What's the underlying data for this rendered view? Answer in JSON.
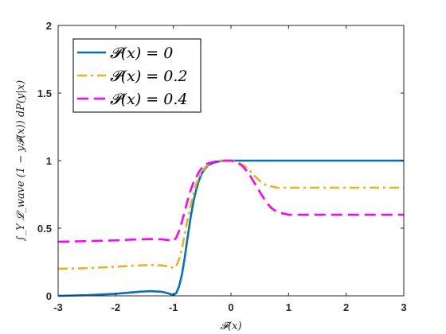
{
  "chart_data": {
    "type": "line",
    "title": "",
    "xlabel": "𝓕(x)",
    "ylabel": "∫_Y 𝓛_wave (1 − y𝓕(x)) dP(y|x)",
    "xlim": [
      -3,
      3
    ],
    "ylim": [
      0,
      2
    ],
    "x_ticks": [
      -3,
      -2,
      -1,
      0,
      1,
      2,
      3
    ],
    "y_ticks": [
      0,
      0.5,
      1,
      1.5,
      2
    ],
    "x_tick_labels": [
      "-3",
      "-2",
      "-1",
      "0",
      "1",
      "2",
      "3"
    ],
    "y_tick_labels": [
      "0",
      "0.5",
      "1",
      "1.5",
      "2"
    ],
    "grid": false,
    "legend_position": "top-left",
    "series": [
      {
        "name": "𝓟(x) = 0",
        "color": "#0072BD",
        "style": "solid",
        "x": [
          -3,
          -2.5,
          -2,
          -1.6,
          -1.4,
          -1.2,
          -1.1,
          -1.0,
          -0.95,
          -0.9,
          -0.85,
          -0.8,
          -0.75,
          -0.7,
          -0.65,
          -0.6,
          -0.55,
          -0.5,
          -0.45,
          -0.4,
          -0.3,
          -0.2,
          -0.1,
          0.0,
          0.1,
          0.2,
          0.3,
          0.5,
          1,
          1.5,
          2,
          2.5,
          3
        ],
        "y": [
          0.0,
          0.005,
          0.015,
          0.03,
          0.035,
          0.03,
          0.02,
          0.005,
          0.02,
          0.07,
          0.16,
          0.29,
          0.44,
          0.58,
          0.7,
          0.79,
          0.86,
          0.91,
          0.94,
          0.965,
          0.985,
          0.995,
          1.0,
          1.0,
          1.0,
          1.0,
          1.0,
          1.0,
          1.0,
          1.0,
          1.0,
          1.0,
          1.0
        ]
      },
      {
        "name": "𝓟(x) = 0.2",
        "color": "#EDB120",
        "style": "dashdot",
        "x": [
          -3,
          -2.5,
          -2,
          -1.6,
          -1.4,
          -1.2,
          -1.05,
          -1.0,
          -0.95,
          -0.9,
          -0.85,
          -0.8,
          -0.75,
          -0.7,
          -0.65,
          -0.6,
          -0.55,
          -0.5,
          -0.45,
          -0.4,
          -0.3,
          -0.2,
          -0.1,
          0.0,
          0.1,
          0.2,
          0.3,
          0.4,
          0.5,
          0.6,
          0.7,
          0.8,
          1,
          1.5,
          2,
          2.5,
          3
        ],
        "y": [
          0.2,
          0.205,
          0.215,
          0.225,
          0.228,
          0.225,
          0.215,
          0.205,
          0.22,
          0.27,
          0.35,
          0.46,
          0.57,
          0.67,
          0.76,
          0.83,
          0.88,
          0.92,
          0.95,
          0.97,
          0.99,
          1.0,
          1.0,
          1.0,
          0.99,
          0.97,
          0.94,
          0.89,
          0.85,
          0.82,
          0.81,
          0.8,
          0.8,
          0.8,
          0.8,
          0.8,
          0.8
        ]
      },
      {
        "name": "𝓟(x) = 0.4",
        "color": "#FF00FF",
        "style": "dashed",
        "x": [
          -3,
          -2.5,
          -2,
          -1.6,
          -1.4,
          -1.2,
          -1.05,
          -1.0,
          -0.95,
          -0.9,
          -0.85,
          -0.8,
          -0.75,
          -0.7,
          -0.65,
          -0.6,
          -0.55,
          -0.5,
          -0.45,
          -0.4,
          -0.3,
          -0.2,
          -0.1,
          0.0,
          0.1,
          0.2,
          0.3,
          0.4,
          0.5,
          0.6,
          0.7,
          0.8,
          0.9,
          1,
          1.5,
          2,
          2.5,
          3
        ],
        "y": [
          0.4,
          0.405,
          0.41,
          0.418,
          0.42,
          0.418,
          0.41,
          0.405,
          0.43,
          0.48,
          0.55,
          0.63,
          0.71,
          0.78,
          0.84,
          0.88,
          0.92,
          0.95,
          0.97,
          0.98,
          0.99,
          1.0,
          1.0,
          1.0,
          0.99,
          0.96,
          0.91,
          0.84,
          0.77,
          0.7,
          0.65,
          0.62,
          0.61,
          0.6,
          0.6,
          0.6,
          0.6,
          0.6
        ]
      }
    ]
  }
}
